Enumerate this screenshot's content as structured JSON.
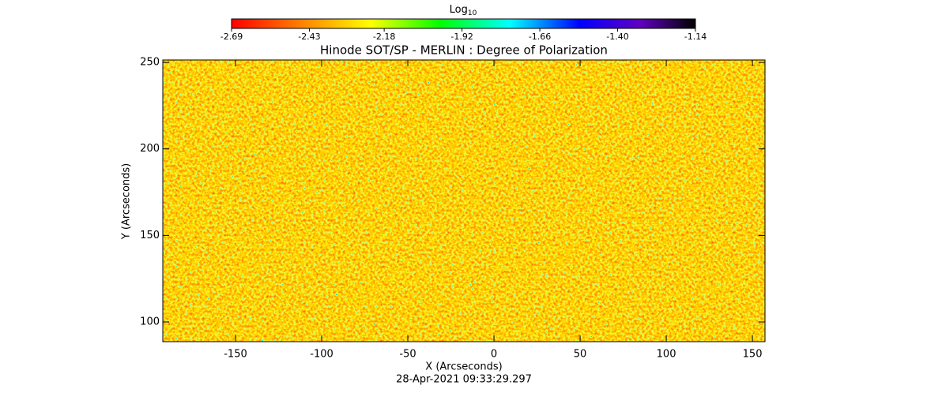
{
  "chart_data": {
    "type": "heatmap",
    "title": "Hinode SOT/SP - MERLIN : Degree of Polarization",
    "x_label": "X (Arcseconds)",
    "y_label": "Y (Arcseconds)",
    "footer": "28-Apr-2021 09:33:29.297",
    "xlim": [
      -192.2,
      157.3
    ],
    "xticks": [
      -150,
      -100,
      -50,
      0,
      50,
      100,
      150
    ],
    "ylim": [
      88.6,
      251.4
    ],
    "yticks": [
      100,
      150,
      200,
      250
    ],
    "colorbar_label": "Log",
    "colorbar_label_sub": "10",
    "clim": [
      -2.69,
      -1.14
    ],
    "cticks": [
      -2.69,
      -2.43,
      -2.18,
      -1.92,
      -1.66,
      {
        "value": -1.4,
        "label": "-1.40"
      },
      -1.14
    ]
  }
}
